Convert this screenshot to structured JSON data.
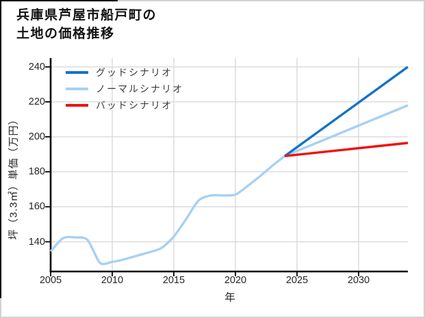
{
  "title": {
    "line1": "兵庫県芦屋市船戸町の",
    "line2": "土地の価格推移"
  },
  "colors": {
    "good": "#1172c8",
    "normal": "#a6d1f4",
    "bad": "#ee1111",
    "grid": "#d9d9d9",
    "spine": "#000000",
    "tick_text": "#262626",
    "outer_border": "#d2d2d2",
    "partial_border": "#000000",
    "background": "#ffffff"
  },
  "chart_data": {
    "type": "line",
    "title": "兵庫県芦屋市船戸町の土地の価格推移",
    "xlabel": "年",
    "ylabel": "坪（3.3㎡）単価（万円）",
    "xlim": [
      2005,
      2034
    ],
    "ylim": [
      123,
      245
    ],
    "x_ticks": [
      2005,
      2010,
      2015,
      2020,
      2025,
      2030
    ],
    "y_ticks": [
      140,
      160,
      180,
      200,
      220,
      240
    ],
    "grid": true,
    "legend_position": "upper-left",
    "legend_entries": [
      {
        "key": "good-scenario",
        "label": "グッドシナリオ",
        "color_ref": "good"
      },
      {
        "key": "normal-scenario",
        "label": "ノーマルシナリオ",
        "color_ref": "normal"
      },
      {
        "key": "bad-scenario",
        "label": "バッドシナリオ",
        "color_ref": "bad"
      }
    ],
    "series": [
      {
        "key": "historical",
        "name": "historical",
        "in_legend": false,
        "color_ref": "normal",
        "smooth": true,
        "x": [
          2005,
          2006,
          2007,
          2008,
          2009,
          2010,
          2011,
          2012,
          2013,
          2014,
          2015,
          2016,
          2017,
          2018,
          2019,
          2020,
          2021,
          2022,
          2023,
          2024
        ],
        "values": [
          134.5,
          142,
          142.5,
          141,
          128,
          128.5,
          130,
          132,
          134,
          136.5,
          143,
          153,
          163.5,
          166.5,
          166.5,
          167,
          172,
          177.5,
          183.5,
          189
        ]
      },
      {
        "key": "normal-scenario",
        "name": "ノーマルシナリオ",
        "in_legend": true,
        "color_ref": "normal",
        "smooth": false,
        "x": [
          2024,
          2034
        ],
        "values": [
          189,
          218
        ]
      },
      {
        "key": "good-scenario",
        "name": "グッドシナリオ",
        "in_legend": true,
        "color_ref": "good",
        "smooth": false,
        "x": [
          2024,
          2034
        ],
        "values": [
          189,
          240
        ]
      },
      {
        "key": "bad-scenario",
        "name": "バッドシナリオ",
        "in_legend": true,
        "color_ref": "bad",
        "smooth": false,
        "x": [
          2024,
          2034
        ],
        "values": [
          189,
          196.5
        ]
      }
    ]
  }
}
